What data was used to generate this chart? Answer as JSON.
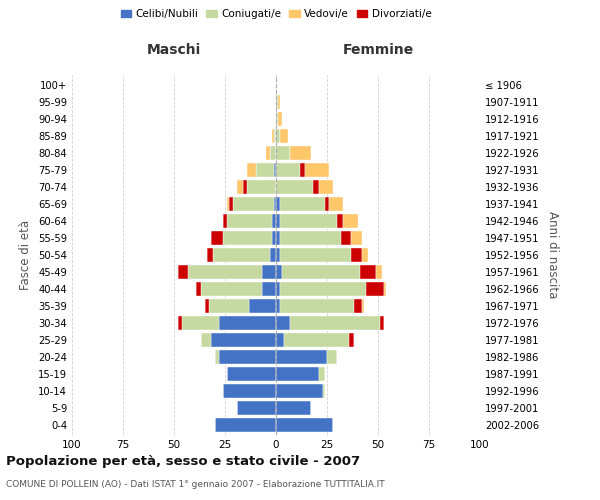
{
  "age_groups": [
    "0-4",
    "5-9",
    "10-14",
    "15-19",
    "20-24",
    "25-29",
    "30-34",
    "35-39",
    "40-44",
    "45-49",
    "50-54",
    "55-59",
    "60-64",
    "65-69",
    "70-74",
    "75-79",
    "80-84",
    "85-89",
    "90-94",
    "95-99",
    "100+"
  ],
  "birth_years": [
    "2002-2006",
    "1997-2001",
    "1992-1996",
    "1987-1991",
    "1982-1986",
    "1977-1981",
    "1972-1976",
    "1967-1971",
    "1962-1966",
    "1957-1961",
    "1952-1956",
    "1947-1951",
    "1942-1946",
    "1937-1941",
    "1932-1936",
    "1927-1931",
    "1922-1926",
    "1917-1921",
    "1912-1916",
    "1907-1911",
    "≤ 1906"
  ],
  "males": {
    "celibi": [
      30,
      19,
      26,
      24,
      28,
      32,
      28,
      13,
      7,
      7,
      3,
      2,
      2,
      1,
      0,
      1,
      0,
      0,
      0,
      0,
      0
    ],
    "coniugati": [
      0,
      0,
      0,
      0,
      2,
      5,
      18,
      20,
      30,
      36,
      28,
      24,
      22,
      20,
      14,
      9,
      3,
      1,
      0,
      0,
      0
    ],
    "vedovi": [
      0,
      0,
      0,
      0,
      0,
      0,
      0,
      0,
      0,
      0,
      0,
      0,
      0,
      1,
      3,
      4,
      2,
      1,
      0,
      0,
      0
    ],
    "divorziati": [
      0,
      0,
      0,
      0,
      0,
      0,
      2,
      2,
      2,
      5,
      3,
      6,
      2,
      2,
      2,
      0,
      0,
      0,
      0,
      0,
      0
    ]
  },
  "females": {
    "nubili": [
      28,
      17,
      23,
      21,
      25,
      4,
      7,
      2,
      2,
      3,
      2,
      2,
      2,
      2,
      0,
      0,
      0,
      0,
      0,
      0,
      0
    ],
    "coniugate": [
      0,
      0,
      1,
      3,
      5,
      32,
      44,
      36,
      42,
      38,
      35,
      30,
      28,
      22,
      18,
      12,
      7,
      2,
      1,
      1,
      0
    ],
    "vedove": [
      0,
      0,
      0,
      0,
      0,
      0,
      0,
      1,
      1,
      3,
      3,
      5,
      7,
      7,
      7,
      12,
      10,
      4,
      2,
      1,
      0
    ],
    "divorziate": [
      0,
      0,
      0,
      0,
      0,
      2,
      2,
      4,
      9,
      8,
      5,
      5,
      3,
      2,
      3,
      2,
      0,
      0,
      0,
      0,
      0
    ]
  },
  "colors": {
    "celibi": "#4472C4",
    "coniugati": "#c5d9a0",
    "vedovi": "#ffc66a",
    "divorziati": "#cc0000"
  },
  "title": "Popolazione per età, sesso e stato civile - 2007",
  "subtitle": "COMUNE DI POLLEIN (AO) - Dati ISTAT 1° gennaio 2007 - Elaborazione TUTTITALIA.IT",
  "xlabel_left": "Maschi",
  "xlabel_right": "Femmine",
  "ylabel_left": "Fasce di età",
  "ylabel_right": "Anni di nascita",
  "xlim": 100,
  "background_color": "#ffffff",
  "grid_color": "#cccccc"
}
